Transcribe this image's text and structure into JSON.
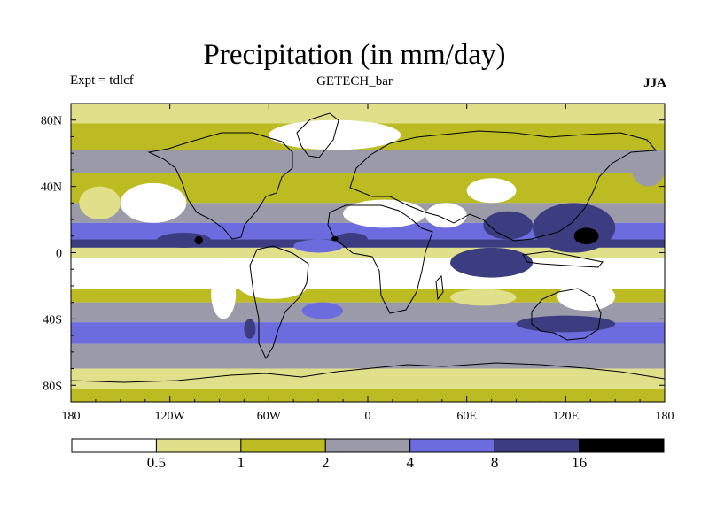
{
  "chart_data": {
    "type": "heatmap",
    "title": "Precipitation (in mm/day)",
    "left_label": "Expt = tdlcf",
    "center_label": "GETECH_bar",
    "right_label": "JJA",
    "x_ticks": [
      {
        "value": -180,
        "label": "180"
      },
      {
        "value": -120,
        "label": "120W"
      },
      {
        "value": -60,
        "label": "60W"
      },
      {
        "value": 0,
        "label": "0"
      },
      {
        "value": 60,
        "label": "60E"
      },
      {
        "value": 120,
        "label": "120E"
      },
      {
        "value": 180,
        "label": "180"
      }
    ],
    "y_ticks": [
      {
        "value": 80,
        "label": "80N"
      },
      {
        "value": 40,
        "label": "40N"
      },
      {
        "value": 0,
        "label": "0"
      },
      {
        "value": -40,
        "label": "40S"
      },
      {
        "value": -80,
        "label": "80S"
      }
    ],
    "xlim": [
      -180,
      180
    ],
    "ylim": [
      -90,
      90
    ],
    "colorbar": {
      "levels": [
        "0.5",
        "1",
        "2",
        "4",
        "8",
        "16"
      ],
      "colors": [
        "#ffffff",
        "#e0e08a",
        "#bcbc22",
        "#9a9aa8",
        "#6c6cde",
        "#3c3c80",
        "#000000"
      ]
    },
    "bands": [
      {
        "lat": [
          78,
          90
        ],
        "level": 1
      },
      {
        "lat": [
          62,
          78
        ],
        "level": 2
      },
      {
        "lat": [
          48,
          62
        ],
        "level": 3
      },
      {
        "lat": [
          30,
          48
        ],
        "level": 2
      },
      {
        "lat": [
          18,
          30
        ],
        "level": 3
      },
      {
        "lat": [
          8,
          18
        ],
        "level": 4
      },
      {
        "lat": [
          3,
          8
        ],
        "level": 5
      },
      {
        "lat": [
          -3,
          3
        ],
        "level": 1
      },
      {
        "lat": [
          -22,
          -3
        ],
        "level": 0
      },
      {
        "lat": [
          -30,
          -22
        ],
        "level": 2
      },
      {
        "lat": [
          -42,
          -30
        ],
        "level": 3
      },
      {
        "lat": [
          -55,
          -42
        ],
        "level": 4
      },
      {
        "lat": [
          -70,
          -55
        ],
        "level": 3
      },
      {
        "lat": [
          -82,
          -70
        ],
        "level": 1
      },
      {
        "lat": [
          -90,
          -82
        ],
        "level": 2
      }
    ],
    "patches": [
      {
        "lon": [
          -150,
          -110
        ],
        "lat": [
          18,
          42
        ],
        "level": 0
      },
      {
        "lon": [
          -175,
          -150
        ],
        "lat": [
          20,
          40
        ],
        "level": 1
      },
      {
        "lon": [
          -128,
          -95
        ],
        "lat": [
          3,
          12
        ],
        "level": 5
      },
      {
        "lon": [
          -105,
          -100
        ],
        "lat": [
          5,
          10
        ],
        "level": 6
      },
      {
        "lon": [
          -45,
          -15
        ],
        "lat": [
          0,
          8
        ],
        "level": 4
      },
      {
        "lon": [
          -15,
          35
        ],
        "lat": [
          15,
          32
        ],
        "level": 0
      },
      {
        "lon": [
          35,
          60
        ],
        "lat": [
          15,
          30
        ],
        "level": 0
      },
      {
        "lon": [
          60,
          90
        ],
        "lat": [
          30,
          45
        ],
        "level": 0
      },
      {
        "lon": [
          -20,
          0
        ],
        "lat": [
          4,
          12
        ],
        "level": 5
      },
      {
        "lon": [
          -22,
          -18
        ],
        "lat": [
          7,
          10
        ],
        "level": 6
      },
      {
        "lon": [
          70,
          100
        ],
        "lat": [
          8,
          25
        ],
        "level": 5
      },
      {
        "lon": [
          100,
          150
        ],
        "lat": [
          0,
          30
        ],
        "level": 5
      },
      {
        "lon": [
          125,
          140
        ],
        "lat": [
          5,
          15
        ],
        "level": 6
      },
      {
        "lon": [
          50,
          100
        ],
        "lat": [
          -15,
          3
        ],
        "level": 5
      },
      {
        "lon": [
          -95,
          -80
        ],
        "lat": [
          -40,
          -10
        ],
        "level": 0
      },
      {
        "lon": [
          -80,
          -35
        ],
        "lat": [
          -28,
          -8
        ],
        "level": 0
      },
      {
        "lon": [
          -10,
          40
        ],
        "lat": [
          -22,
          -5
        ],
        "level": 0
      },
      {
        "lon": [
          115,
          150
        ],
        "lat": [
          -35,
          -18
        ],
        "level": 0
      },
      {
        "lon": [
          -75,
          -68
        ],
        "lat": [
          -52,
          -40
        ],
        "level": 5
      },
      {
        "lon": [
          -40,
          -15
        ],
        "lat": [
          -40,
          -30
        ],
        "level": 4
      },
      {
        "lon": [
          90,
          150
        ],
        "lat": [
          -48,
          -38
        ],
        "level": 5
      },
      {
        "lon": [
          50,
          90
        ],
        "lat": [
          -32,
          -22
        ],
        "level": 1
      },
      {
        "lon": [
          -60,
          20
        ],
        "lat": [
          62,
          80
        ],
        "level": 0
      },
      {
        "lon": [
          160,
          180
        ],
        "lat": [
          40,
          60
        ],
        "level": 3
      }
    ]
  }
}
